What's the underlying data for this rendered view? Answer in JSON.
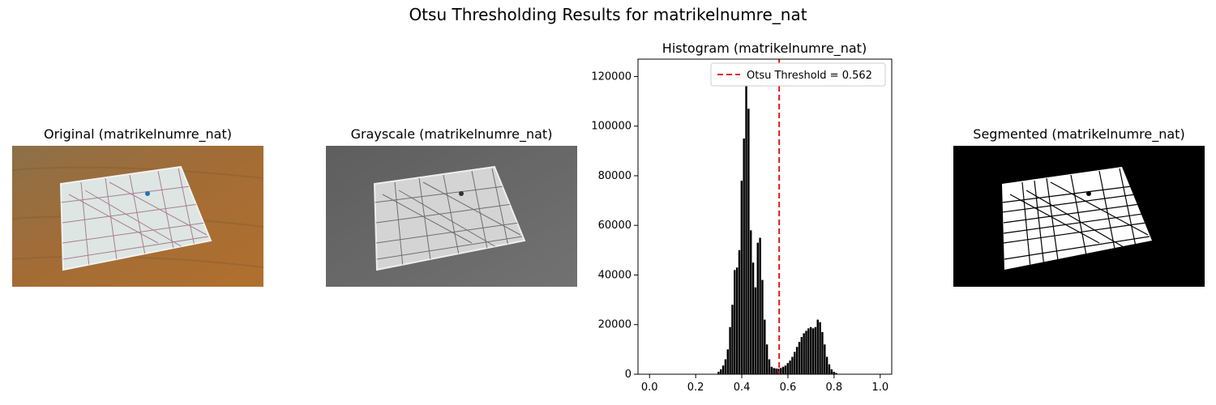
{
  "figure": {
    "suptitle": "Otsu Thresholding Results for matrikelnumre_nat"
  },
  "panels": {
    "original_title": "Original (matrikelnumre_nat)",
    "grayscale_title": "Grayscale (matrikelnumre_nat)",
    "segmented_title": "Segmented (matrikelnumre_nat)"
  },
  "colors": {
    "threshold_line": "#e41a1c",
    "bars": "#000000",
    "wood": "#9a6a33",
    "paper": "#d8e2df",
    "marker_blue": "#1f77b4"
  },
  "chart_data": {
    "type": "bar",
    "title": "Histogram (matrikelnumre_nat)",
    "xlabel": "",
    "ylabel": "",
    "xlim": [
      -0.05,
      1.05
    ],
    "ylim": [
      0,
      127000
    ],
    "xticks": [
      0.0,
      0.2,
      0.4,
      0.6,
      0.8,
      1.0
    ],
    "xtick_labels": [
      "0.0",
      "0.2",
      "0.4",
      "0.6",
      "0.8",
      "1.0"
    ],
    "yticks": [
      0,
      20000,
      40000,
      60000,
      80000,
      100000,
      120000
    ],
    "ytick_labels": [
      "0",
      "20000",
      "40000",
      "60000",
      "80000",
      "100000",
      "120000"
    ],
    "threshold": 0.562,
    "legend": {
      "label": "Otsu Threshold = 0.562",
      "placement": "top-right"
    },
    "bins": [
      {
        "x": 0.3,
        "y": 1000
      },
      {
        "x": 0.31,
        "y": 2000
      },
      {
        "x": 0.32,
        "y": 3500
      },
      {
        "x": 0.33,
        "y": 6000
      },
      {
        "x": 0.34,
        "y": 10000
      },
      {
        "x": 0.35,
        "y": 19000
      },
      {
        "x": 0.36,
        "y": 28000
      },
      {
        "x": 0.37,
        "y": 42000
      },
      {
        "x": 0.38,
        "y": 43000
      },
      {
        "x": 0.39,
        "y": 50000
      },
      {
        "x": 0.4,
        "y": 78000
      },
      {
        "x": 0.41,
        "y": 95000
      },
      {
        "x": 0.42,
        "y": 118000
      },
      {
        "x": 0.43,
        "y": 107000
      },
      {
        "x": 0.44,
        "y": 58000
      },
      {
        "x": 0.45,
        "y": 45000
      },
      {
        "x": 0.46,
        "y": 35000
      },
      {
        "x": 0.47,
        "y": 53000
      },
      {
        "x": 0.48,
        "y": 55000
      },
      {
        "x": 0.49,
        "y": 38000
      },
      {
        "x": 0.5,
        "y": 22000
      },
      {
        "x": 0.51,
        "y": 12000
      },
      {
        "x": 0.52,
        "y": 6000
      },
      {
        "x": 0.53,
        "y": 3000
      },
      {
        "x": 0.54,
        "y": 2500
      },
      {
        "x": 0.55,
        "y": 2300
      },
      {
        "x": 0.56,
        "y": 2200
      },
      {
        "x": 0.57,
        "y": 2500
      },
      {
        "x": 0.58,
        "y": 3000
      },
      {
        "x": 0.59,
        "y": 3500
      },
      {
        "x": 0.6,
        "y": 4500
      },
      {
        "x": 0.61,
        "y": 5500
      },
      {
        "x": 0.62,
        "y": 7000
      },
      {
        "x": 0.63,
        "y": 9000
      },
      {
        "x": 0.64,
        "y": 11000
      },
      {
        "x": 0.65,
        "y": 13000
      },
      {
        "x": 0.66,
        "y": 15000
      },
      {
        "x": 0.67,
        "y": 16500
      },
      {
        "x": 0.68,
        "y": 17500
      },
      {
        "x": 0.69,
        "y": 18500
      },
      {
        "x": 0.7,
        "y": 19000
      },
      {
        "x": 0.71,
        "y": 18500
      },
      {
        "x": 0.72,
        "y": 19000
      },
      {
        "x": 0.73,
        "y": 22000
      },
      {
        "x": 0.74,
        "y": 21000
      },
      {
        "x": 0.75,
        "y": 17000
      },
      {
        "x": 0.76,
        "y": 12000
      },
      {
        "x": 0.77,
        "y": 7000
      },
      {
        "x": 0.78,
        "y": 4000
      },
      {
        "x": 0.79,
        "y": 2000
      },
      {
        "x": 0.8,
        "y": 1000
      },
      {
        "x": 0.81,
        "y": 500
      }
    ]
  }
}
